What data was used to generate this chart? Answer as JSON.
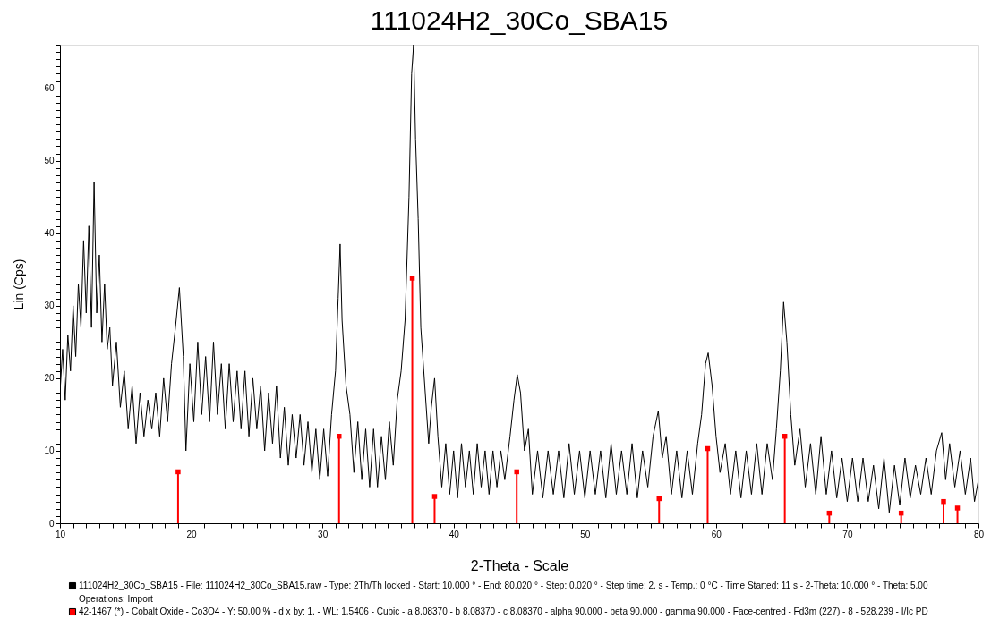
{
  "chart_data": {
    "type": "line",
    "title": "111024H2_30Co_SBA15",
    "xlabel": "2-Theta - Scale",
    "ylabel": "Lin (Cps)",
    "xlim": [
      10,
      80
    ],
    "ylim": [
      0,
      66
    ],
    "xticks": [
      10,
      {
        "value": 11,
        "label": null
      },
      {
        "value": 12,
        "label": null
      },
      {
        "value": 13,
        "label": null
      },
      {
        "value": 14,
        "label": null
      },
      {
        "value": 15,
        "label": null
      },
      {
        "value": 16,
        "label": null
      },
      {
        "value": 17,
        "label": null
      },
      {
        "value": 18,
        "label": null
      },
      {
        "value": 19,
        "label": null
      },
      20,
      {
        "value": 21,
        "label": null
      },
      {
        "value": 22,
        "label": null
      },
      {
        "value": 23,
        "label": null
      },
      {
        "value": 24,
        "label": null
      },
      {
        "value": 25,
        "label": null
      },
      {
        "value": 26,
        "label": null
      },
      {
        "value": 27,
        "label": null
      },
      {
        "value": 28,
        "label": null
      },
      {
        "value": 29,
        "label": null
      },
      30,
      {
        "value": 31,
        "label": null
      },
      {
        "value": 32,
        "label": null
      },
      {
        "value": 33,
        "label": null
      },
      {
        "value": 34,
        "label": null
      },
      {
        "value": 35,
        "label": null
      },
      {
        "value": 36,
        "label": null
      },
      {
        "value": 37,
        "label": null
      },
      {
        "value": 38,
        "label": null
      },
      {
        "value": 39,
        "label": null
      },
      40,
      {
        "value": 41,
        "label": null
      },
      {
        "value": 42,
        "label": null
      },
      {
        "value": 43,
        "label": null
      },
      {
        "value": 44,
        "label": null
      },
      {
        "value": 45,
        "label": null
      },
      {
        "value": 46,
        "label": null
      },
      {
        "value": 47,
        "label": null
      },
      {
        "value": 48,
        "label": null
      },
      {
        "value": 49,
        "label": null
      },
      50,
      {
        "value": 51,
        "label": null
      },
      {
        "value": 52,
        "label": null
      },
      {
        "value": 53,
        "label": null
      },
      {
        "value": 54,
        "label": null
      },
      {
        "value": 55,
        "label": null
      },
      {
        "value": 56,
        "label": null
      },
      {
        "value": 57,
        "label": null
      },
      {
        "value": 58,
        "label": null
      },
      {
        "value": 59,
        "label": null
      },
      60,
      {
        "value": 61,
        "label": null
      },
      {
        "value": 62,
        "label": null
      },
      {
        "value": 63,
        "label": null
      },
      {
        "value": 64,
        "label": null
      },
      {
        "value": 65,
        "label": null
      },
      {
        "value": 66,
        "label": null
      },
      {
        "value": 67,
        "label": null
      },
      {
        "value": 68,
        "label": null
      },
      {
        "value": 69,
        "label": null
      },
      70,
      {
        "value": 71,
        "label": null
      },
      {
        "value": 72,
        "label": null
      },
      {
        "value": 73,
        "label": null
      },
      {
        "value": 74,
        "label": null
      },
      {
        "value": 75,
        "label": null
      },
      {
        "value": 76,
        "label": null
      },
      {
        "value": 77,
        "label": null
      },
      {
        "value": 78,
        "label": null
      },
      {
        "value": 79,
        "label": null
      },
      80
    ],
    "yticks": [
      0,
      {
        "value": 1,
        "label": null
      },
      {
        "value": 2,
        "label": null
      },
      {
        "value": 3,
        "label": null
      },
      {
        "value": 4,
        "label": null
      },
      {
        "value": 5,
        "label": null
      },
      {
        "value": 6,
        "label": null
      },
      {
        "value": 7,
        "label": null
      },
      {
        "value": 8,
        "label": null
      },
      {
        "value": 9,
        "label": null
      },
      10,
      {
        "value": 11,
        "label": null
      },
      {
        "value": 12,
        "label": null
      },
      {
        "value": 13,
        "label": null
      },
      {
        "value": 14,
        "label": null
      },
      {
        "value": 15,
        "label": null
      },
      {
        "value": 16,
        "label": null
      },
      {
        "value": 17,
        "label": null
      },
      {
        "value": 18,
        "label": null
      },
      {
        "value": 19,
        "label": null
      },
      20,
      {
        "value": 21,
        "label": null
      },
      {
        "value": 22,
        "label": null
      },
      {
        "value": 23,
        "label": null
      },
      {
        "value": 24,
        "label": null
      },
      {
        "value": 25,
        "label": null
      },
      {
        "value": 26,
        "label": null
      },
      {
        "value": 27,
        "label": null
      },
      {
        "value": 28,
        "label": null
      },
      {
        "value": 29,
        "label": null
      },
      30,
      {
        "value": 31,
        "label": null
      },
      {
        "value": 32,
        "label": null
      },
      {
        "value": 33,
        "label": null
      },
      {
        "value": 34,
        "label": null
      },
      {
        "value": 35,
        "label": null
      },
      {
        "value": 36,
        "label": null
      },
      {
        "value": 37,
        "label": null
      },
      {
        "value": 38,
        "label": null
      },
      {
        "value": 39,
        "label": null
      },
      40,
      {
        "value": 41,
        "label": null
      },
      {
        "value": 42,
        "label": null
      },
      {
        "value": 43,
        "label": null
      },
      {
        "value": 44,
        "label": null
      },
      {
        "value": 45,
        "label": null
      },
      {
        "value": 46,
        "label": null
      },
      {
        "value": 47,
        "label": null
      },
      {
        "value": 48,
        "label": null
      },
      {
        "value": 49,
        "label": null
      },
      50,
      {
        "value": 51,
        "label": null
      },
      {
        "value": 52,
        "label": null
      },
      {
        "value": 53,
        "label": null
      },
      {
        "value": 54,
        "label": null
      },
      {
        "value": 55,
        "label": null
      },
      {
        "value": 56,
        "label": null
      },
      {
        "value": 57,
        "label": null
      },
      {
        "value": 58,
        "label": null
      },
      {
        "value": 59,
        "label": null
      },
      60,
      {
        "value": 61,
        "label": null
      },
      {
        "value": 62,
        "label": null
      },
      {
        "value": 63,
        "label": null
      },
      {
        "value": 64,
        "label": null
      },
      {
        "value": 65,
        "label": null
      },
      {
        "value": 66,
        "label": null
      }
    ],
    "grid": false,
    "legend": "bottom",
    "annotations": [
      "Operations: Import"
    ],
    "series": [
      {
        "name": "111024H2_30Co_SBA15 - File: 111024H2_30Co_SBA15.raw - Type: 2Th/Th locked - Start: 10.000 ° - End: 80.020 ° - Step: 0.020 ° - Step time: 2. s - Temp.: 0 °C - Time Started: 11 s - 2-Theta: 10.000 ° - Theta: 5.00",
        "type": "line",
        "color": "#000000",
        "marker": "none",
        "x": [
          10.0,
          10.2,
          10.4,
          10.6,
          10.8,
          11.0,
          11.2,
          11.4,
          11.6,
          11.8,
          12.0,
          12.2,
          12.4,
          12.6,
          12.8,
          13.0,
          13.2,
          13.4,
          13.6,
          13.8,
          14.0,
          14.3,
          14.6,
          14.9,
          15.2,
          15.5,
          15.8,
          16.1,
          16.4,
          16.7,
          17.0,
          17.3,
          17.6,
          17.9,
          18.2,
          18.5,
          18.8,
          19.1,
          19.4,
          19.6,
          19.9,
          20.2,
          20.5,
          20.8,
          21.1,
          21.4,
          21.7,
          22.0,
          22.3,
          22.6,
          22.9,
          23.2,
          23.5,
          23.8,
          24.1,
          24.4,
          24.7,
          25.0,
          25.3,
          25.6,
          25.9,
          26.2,
          26.5,
          26.8,
          27.1,
          27.4,
          27.7,
          28.0,
          28.3,
          28.6,
          28.9,
          29.2,
          29.5,
          29.8,
          30.1,
          30.4,
          30.7,
          31.0,
          31.2,
          31.35,
          31.5,
          31.8,
          32.1,
          32.4,
          32.7,
          33.0,
          33.3,
          33.6,
          33.9,
          34.2,
          34.5,
          34.8,
          35.1,
          35.4,
          35.7,
          36.0,
          36.3,
          36.6,
          36.8,
          36.95,
          37.1,
          37.3,
          37.5,
          37.8,
          38.1,
          38.3,
          38.55,
          38.8,
          39.1,
          39.4,
          39.7,
          40.0,
          40.3,
          40.6,
          40.9,
          41.2,
          41.5,
          41.8,
          42.1,
          42.4,
          42.7,
          43.0,
          43.3,
          43.6,
          43.9,
          44.3,
          44.6,
          44.85,
          45.1,
          45.4,
          45.7,
          46.0,
          46.4,
          46.8,
          47.2,
          47.6,
          48.0,
          48.4,
          48.8,
          49.2,
          49.6,
          50.0,
          50.4,
          50.8,
          51.2,
          51.6,
          52.0,
          52.4,
          52.8,
          53.2,
          53.6,
          54.0,
          54.4,
          54.8,
          55.2,
          55.6,
          55.9,
          56.2,
          56.6,
          57.0,
          57.4,
          57.8,
          58.2,
          58.6,
          58.9,
          59.2,
          59.4,
          59.7,
          60.0,
          60.3,
          60.7,
          61.1,
          61.5,
          61.9,
          62.3,
          62.7,
          63.1,
          63.5,
          63.9,
          64.3,
          64.6,
          64.9,
          65.15,
          65.4,
          65.7,
          66.0,
          66.4,
          66.8,
          67.2,
          67.6,
          68.0,
          68.4,
          68.8,
          69.2,
          69.6,
          70.0,
          70.4,
          70.8,
          71.2,
          71.6,
          72.0,
          72.4,
          72.8,
          73.2,
          73.6,
          74.0,
          74.4,
          74.8,
          75.2,
          75.6,
          76.0,
          76.4,
          76.8,
          77.2,
          77.5,
          77.8,
          78.2,
          78.6,
          79.0,
          79.4,
          79.7,
          80.0
        ],
        "values": [
          18,
          24,
          17,
          26,
          21,
          30,
          23,
          33,
          27,
          39,
          29,
          41,
          27,
          47,
          29,
          37,
          25,
          33,
          24,
          27,
          19,
          25,
          16,
          21,
          13,
          19,
          11,
          18,
          12,
          17,
          13,
          18,
          12,
          20,
          14,
          22,
          27,
          32.5,
          23,
          10,
          22,
          14,
          25,
          15,
          23,
          14,
          25,
          15,
          22,
          13,
          22,
          14,
          21,
          13,
          21,
          12,
          20,
          13,
          19,
          10,
          18,
          11,
          19,
          9,
          16,
          8,
          15,
          9,
          15,
          8,
          14,
          7,
          13,
          6,
          13,
          6.5,
          15,
          21,
          31,
          38.5,
          28,
          19,
          15,
          7,
          14,
          6,
          13,
          5,
          13,
          5,
          12,
          6,
          14,
          8,
          17,
          21,
          28,
          45,
          62,
          66,
          53,
          42,
          27,
          19,
          11,
          16,
          20,
          12,
          5,
          11,
          4,
          10,
          3.5,
          11,
          5,
          10,
          4,
          11,
          5,
          10,
          4,
          10,
          5,
          10,
          6,
          12,
          17,
          20.5,
          18,
          10,
          13,
          4,
          10,
          3.5,
          10,
          4,
          10,
          3.5,
          11,
          4,
          10,
          3.5,
          10,
          4,
          10,
          3.5,
          11,
          4,
          10,
          4,
          11,
          3.5,
          10,
          5,
          12,
          15.5,
          9,
          12,
          4,
          10,
          3.5,
          10,
          4,
          11,
          15,
          22,
          23.5,
          19,
          12,
          7,
          11,
          4,
          10,
          3.5,
          10,
          4,
          11,
          4,
          11,
          6,
          13,
          21,
          30.5,
          25,
          15,
          8,
          13,
          5,
          11,
          4,
          12,
          4,
          10,
          3.5,
          9,
          3,
          9,
          3,
          9,
          3,
          8,
          2,
          9,
          1.5,
          8,
          2.5,
          9,
          3.5,
          8,
          4,
          9,
          4,
          10,
          12.5,
          6,
          11,
          5,
          10,
          4,
          9,
          3,
          6
        ]
      },
      {
        "name": "42-1467 (*) - Cobalt Oxide - Co3O4 - Y: 50.00 % - d x by: 1. - WL: 1.5406 - Cubic - a 8.08370 - b 8.08370 - c 8.08370 - alpha 90.000 - beta 90.000 - gamma 90.000 - Face-centred - Fd3m (227) - 8 - 528.239 - I/Ic PD",
        "type": "lollipop",
        "color": "#ff0000",
        "marker": "square",
        "x": [
          19.0,
          31.27,
          36.85,
          38.55,
          44.81,
          55.66,
          59.36,
          65.24,
          68.63,
          74.11,
          77.34,
          78.4
        ],
        "values": [
          7.1,
          12.0,
          33.8,
          3.7,
          7.1,
          3.4,
          10.3,
          12.0,
          1.4,
          1.4,
          3.0,
          2.1
        ]
      }
    ]
  }
}
